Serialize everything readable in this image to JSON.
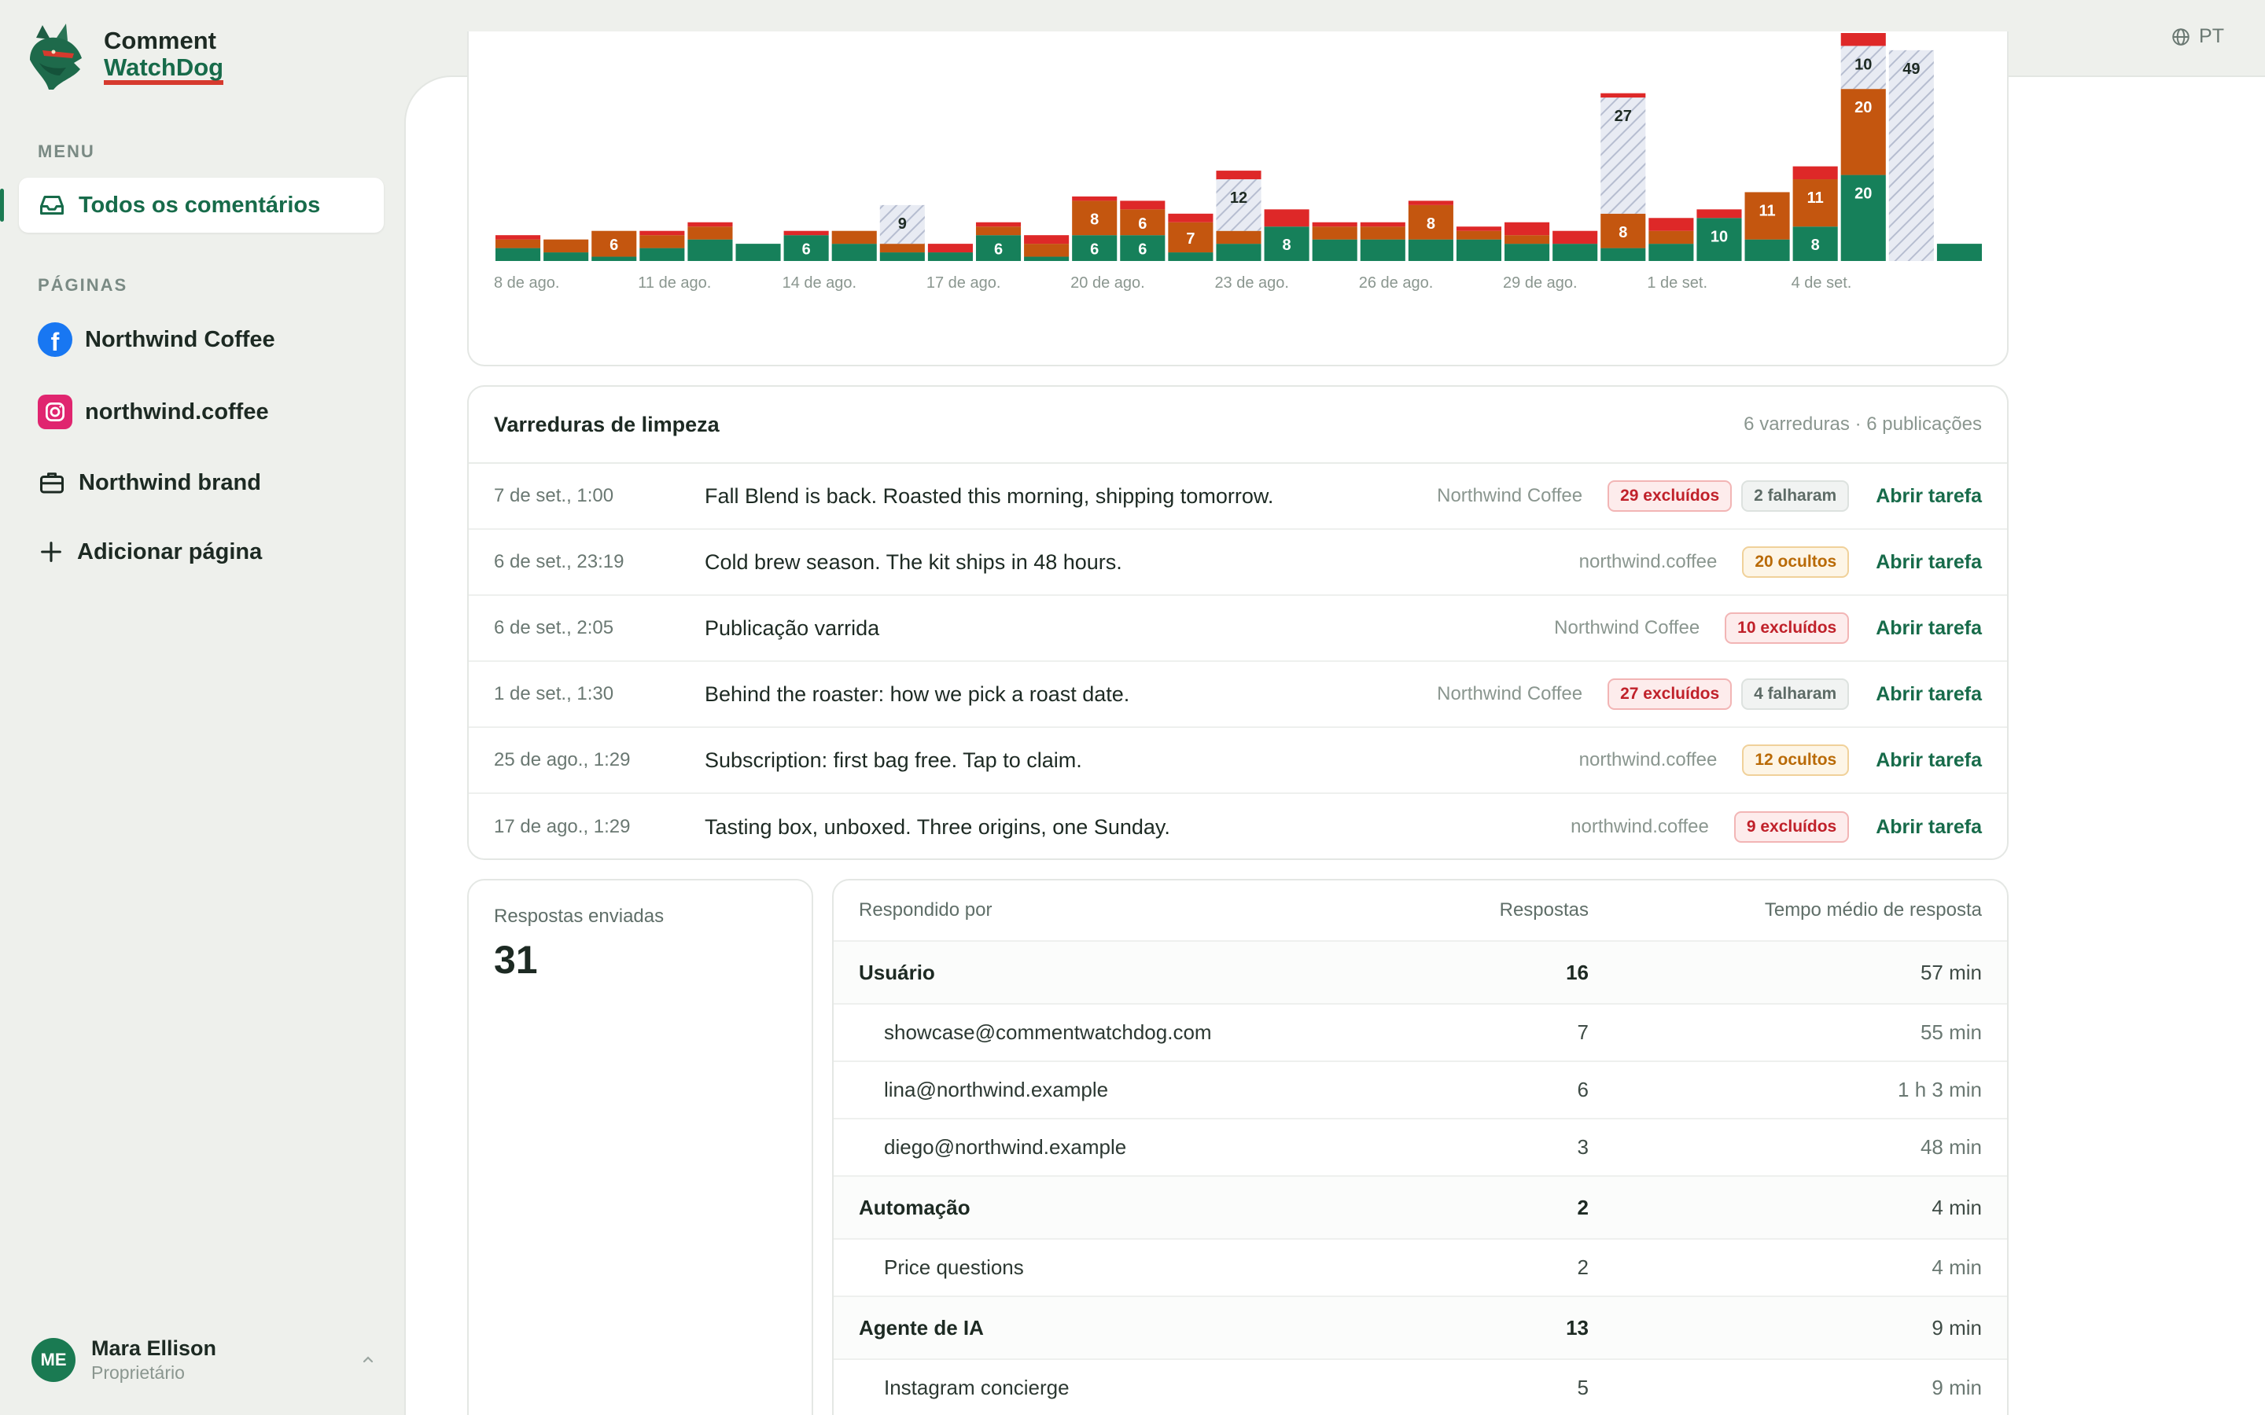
{
  "app": {
    "name_line1": "Comment",
    "name_line2": "WatchDog",
    "language": "PT"
  },
  "sidebar": {
    "menu_label": "MENU",
    "all_comments": "Todos os comentários",
    "pages_label": "PÁGINAS",
    "pages": [
      {
        "label": "Northwind Coffee",
        "icon": "facebook-icon"
      },
      {
        "label": "northwind.coffee",
        "icon": "instagram-icon"
      },
      {
        "label": "Northwind brand",
        "icon": "briefcase-icon"
      }
    ],
    "add_page": "Adicionar página"
  },
  "user": {
    "initials": "ME",
    "name": "Mara Ellison",
    "role": "Proprietário"
  },
  "colors": {
    "green": "#16805a",
    "orange": "#c4560f",
    "red": "#de2828",
    "hatched": "#e7eaf2"
  },
  "chart_data": {
    "type": "bar",
    "stacked": true,
    "title": "",
    "x_tick_labels": [
      "8 de ago.",
      "11 de ago.",
      "14 de ago.",
      "17 de ago.",
      "20 de ago.",
      "23 de ago.",
      "26 de ago.",
      "29 de ago.",
      "1 de set.",
      "4 de set."
    ],
    "categories": [
      "8/8",
      "9/8",
      "10/8",
      "11/8",
      "12/8",
      "13/8",
      "14/8",
      "15/8",
      "16/8",
      "17/8",
      "18/8",
      "19/8",
      "20/8",
      "21/8",
      "22/8",
      "23/8",
      "24/8",
      "25/8",
      "26/8",
      "27/8",
      "28/8",
      "29/8",
      "30/8",
      "31/8",
      "1/9",
      "2/9",
      "3/9",
      "4/9",
      "5/9",
      "6/9",
      "7/9"
    ],
    "series": [
      {
        "key": "green",
        "values": [
          3,
          2,
          1,
          3,
          5,
          4,
          6,
          4,
          2,
          2,
          6,
          1,
          6,
          6,
          2,
          4,
          8,
          5,
          5,
          5,
          5,
          4,
          4,
          3,
          4,
          10,
          5,
          8,
          20,
          0,
          4
        ]
      },
      {
        "key": "orange",
        "values": [
          2,
          3,
          6,
          3,
          3,
          0,
          0,
          3,
          2,
          0,
          2,
          3,
          8,
          6,
          7,
          3,
          0,
          3,
          3,
          8,
          2,
          2,
          0,
          8,
          3,
          0,
          11,
          11,
          20,
          0,
          0
        ]
      },
      {
        "key": "hatched",
        "values": [
          0,
          0,
          0,
          0,
          0,
          0,
          0,
          0,
          9,
          0,
          0,
          0,
          0,
          0,
          0,
          12,
          0,
          0,
          0,
          0,
          0,
          0,
          0,
          27,
          0,
          0,
          0,
          0,
          10,
          49,
          0
        ]
      },
      {
        "key": "red",
        "values": [
          1,
          0,
          0,
          1,
          1,
          0,
          1,
          0,
          0,
          2,
          1,
          2,
          1,
          2,
          2,
          2,
          4,
          1,
          1,
          1,
          1,
          3,
          3,
          1,
          3,
          2,
          0,
          3,
          3,
          0,
          0
        ]
      }
    ],
    "value_labels": [
      {
        "index": 2,
        "series": "orange",
        "text": "6"
      },
      {
        "index": 6,
        "series": "green",
        "text": "6"
      },
      {
        "index": 8,
        "series": "hatched",
        "text": "9"
      },
      {
        "index": 10,
        "series": "green",
        "text": "6"
      },
      {
        "index": 12,
        "series": "green",
        "text": "6"
      },
      {
        "index": 12,
        "series": "orange",
        "text": "8"
      },
      {
        "index": 13,
        "series": "green",
        "text": "6"
      },
      {
        "index": 13,
        "series": "orange",
        "text": "6"
      },
      {
        "index": 14,
        "series": "orange",
        "text": "7"
      },
      {
        "index": 15,
        "series": "hatched",
        "text": "12"
      },
      {
        "index": 16,
        "series": "green",
        "text": "8"
      },
      {
        "index": 19,
        "series": "orange",
        "text": "8"
      },
      {
        "index": 23,
        "series": "hatched",
        "text": "27"
      },
      {
        "index": 23,
        "series": "orange",
        "text": "8"
      },
      {
        "index": 25,
        "series": "green",
        "text": "10"
      },
      {
        "index": 26,
        "series": "orange",
        "text": "11"
      },
      {
        "index": 27,
        "series": "green",
        "text": "8"
      },
      {
        "index": 27,
        "series": "orange",
        "text": "11"
      },
      {
        "index": 28,
        "series": "green",
        "text": "20"
      },
      {
        "index": 28,
        "series": "hatched",
        "text": "10"
      },
      {
        "index": 28,
        "series": "orange",
        "text": "20"
      },
      {
        "index": 29,
        "series": "hatched",
        "text": "49"
      }
    ],
    "ylim": [
      0,
      53
    ]
  },
  "sweeps": {
    "title": "Varreduras de limpeza",
    "meta": "6 varreduras · 6 publicações",
    "open_label": "Abrir tarefa",
    "rows": [
      {
        "date": "7 de set., 1:00",
        "text": "Fall Blend is back. Roasted this morning, shipping tomorrow.",
        "page": "Northwind Coffee",
        "badges": [
          {
            "text": "29 excluídos",
            "kind": "red"
          },
          {
            "text": "2 falharam",
            "kind": "gray"
          }
        ]
      },
      {
        "date": "6 de set., 23:19",
        "text": "Cold brew season. The kit ships in 48 hours.",
        "page": "northwind.coffee",
        "badges": [
          {
            "text": "20 ocultos",
            "kind": "orange"
          }
        ]
      },
      {
        "date": "6 de set., 2:05",
        "text": "Publicação varrida",
        "page": "Northwind Coffee",
        "badges": [
          {
            "text": "10 excluídos",
            "kind": "red"
          }
        ]
      },
      {
        "date": "1 de set., 1:30",
        "text": "Behind the roaster: how we pick a roast date.",
        "page": "Northwind Coffee",
        "badges": [
          {
            "text": "27 excluídos",
            "kind": "red"
          },
          {
            "text": "4 falharam",
            "kind": "gray"
          }
        ]
      },
      {
        "date": "25 de ago., 1:29",
        "text": "Subscription: first bag free. Tap to claim.",
        "page": "northwind.coffee",
        "badges": [
          {
            "text": "12 ocultos",
            "kind": "orange"
          }
        ]
      },
      {
        "date": "17 de ago., 1:29",
        "text": "Tasting box, unboxed. Three origins, one Sunday.",
        "page": "northwind.coffee",
        "badges": [
          {
            "text": "9 excluídos",
            "kind": "red"
          }
        ]
      }
    ]
  },
  "replies": {
    "label": "Respostas enviadas",
    "value": "31"
  },
  "responders": {
    "headers": [
      "Respondido por",
      "Respostas",
      "Tempo médio de resposta"
    ],
    "rows": [
      {
        "type": "group",
        "name": "Usuário",
        "count": "16",
        "time": "57 min"
      },
      {
        "type": "sub",
        "name": "showcase@commentwatchdog.com",
        "count": "7",
        "time": "55 min"
      },
      {
        "type": "sub",
        "name": "lina@northwind.example",
        "count": "6",
        "time": "1 h 3 min"
      },
      {
        "type": "sub",
        "name": "diego@northwind.example",
        "count": "3",
        "time": "48 min"
      },
      {
        "type": "group",
        "name": "Automação",
        "count": "2",
        "time": "4 min"
      },
      {
        "type": "sub",
        "name": "Price questions",
        "count": "2",
        "time": "4 min"
      },
      {
        "type": "group",
        "name": "Agente de IA",
        "count": "13",
        "time": "9 min"
      },
      {
        "type": "sub",
        "name": "Instagram concierge",
        "count": "5",
        "time": "9 min"
      }
    ]
  }
}
